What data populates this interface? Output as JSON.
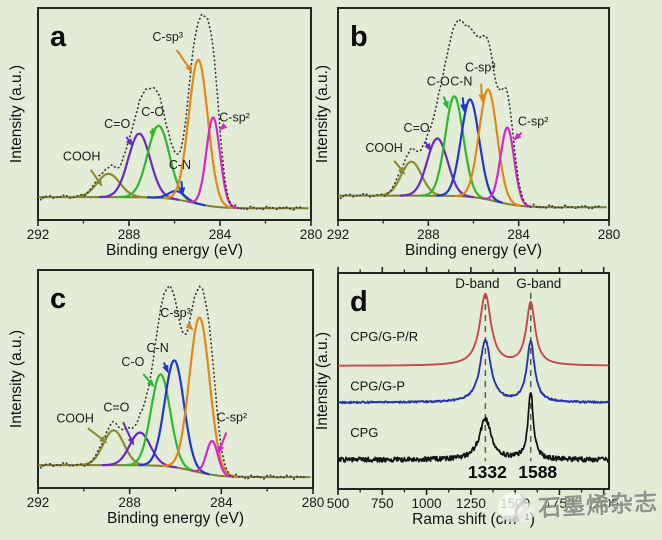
{
  "page": {
    "background": "#e3ecd7",
    "watermark": {
      "logo": "journal-logo",
      "text": "石墨烯杂志"
    }
  },
  "chart_data": [
    {
      "id": "a",
      "type": "area",
      "panel_label": "a",
      "xlabel": "Binding energy (eV)",
      "ylabel": "Intensity (a.u.)",
      "xlim": [
        292,
        280
      ],
      "x_ticks": [
        292,
        288,
        284,
        280
      ],
      "x_minor_ticks": [
        290,
        286,
        282
      ],
      "grid": false,
      "background_line": {
        "left_level": 0.108,
        "right_level": 0.055,
        "center": 285.2,
        "width": 0.55,
        "color": "#7d7d33"
      },
      "envelope": {
        "style": "dotted",
        "color": "#3c3c3c",
        "scale": 1.2,
        "noise": 0.013
      },
      "peaks": [
        {
          "slug": "cooh",
          "label": "COOH",
          "center": 288.9,
          "height": 0.11,
          "sigma": 0.5,
          "color": "#8b8b2f",
          "label_pos": [
            0.16,
            0.72
          ]
        },
        {
          "slug": "c-dbl-o",
          "label": "C=O",
          "center": 287.55,
          "height": 0.3,
          "sigma": 0.48,
          "color": "#6a2abf",
          "label_pos": [
            0.29,
            0.565
          ]
        },
        {
          "slug": "c-o",
          "label": "C-O",
          "center": 286.7,
          "height": 0.34,
          "sigma": 0.48,
          "color": "#2eb82e",
          "label_pos": [
            0.42,
            0.51
          ]
        },
        {
          "slug": "c-n",
          "label": "C-N",
          "center": 285.9,
          "height": 0.04,
          "sigma": 0.35,
          "color": "#2038c8",
          "label_pos": [
            0.52,
            0.76
          ]
        },
        {
          "slug": "c-sp3",
          "label": "C-sp³",
          "center": 284.95,
          "height": 0.68,
          "sigma": 0.42,
          "color": "#e0891a",
          "label_pos": [
            0.475,
            0.155
          ]
        },
        {
          "slug": "c-sp2",
          "label": "C-sp²",
          "center": 284.3,
          "height": 0.42,
          "sigma": 0.3,
          "color": "#d428c8",
          "label_pos": [
            0.72,
            0.535
          ]
        }
      ]
    },
    {
      "id": "b",
      "type": "area",
      "panel_label": "b",
      "xlabel": "Binding energy (eV)",
      "ylabel": "Intensity (a.u.)",
      "xlim": [
        292,
        280
      ],
      "x_ticks": [
        292,
        288,
        284,
        280
      ],
      "x_minor_ticks": [
        290,
        286,
        282
      ],
      "grid": false,
      "background_line": {
        "left_level": 0.115,
        "right_level": 0.06,
        "center": 285.0,
        "width": 0.55,
        "color": "#7d7d33"
      },
      "envelope": {
        "style": "dotted",
        "color": "#3c3c3c",
        "scale": 1.26,
        "noise": 0.013
      },
      "peaks": [
        {
          "slug": "cooh",
          "label": "COOH",
          "center": 288.75,
          "height": 0.16,
          "sigma": 0.45,
          "color": "#8b8b2f",
          "label_pos": [
            0.17,
            0.68
          ]
        },
        {
          "slug": "c-dbl-o",
          "label": "C=O",
          "center": 287.6,
          "height": 0.27,
          "sigma": 0.45,
          "color": "#6a2abf",
          "label_pos": [
            0.29,
            0.585
          ]
        },
        {
          "slug": "c-o",
          "label": "C-O",
          "center": 286.85,
          "height": 0.47,
          "sigma": 0.4,
          "color": "#2eb82e",
          "label_pos": [
            0.37,
            0.365
          ]
        },
        {
          "slug": "c-n",
          "label": "C-N",
          "center": 286.15,
          "height": 0.46,
          "sigma": 0.4,
          "color": "#2038c8",
          "label_pos": [
            0.455,
            0.365
          ]
        },
        {
          "slug": "c-sp3",
          "label": "C-sp³",
          "center": 285.35,
          "height": 0.52,
          "sigma": 0.4,
          "color": "#e0891a",
          "label_pos": [
            0.525,
            0.3
          ]
        },
        {
          "slug": "c-sp2",
          "label": "C-sp²",
          "center": 284.5,
          "height": 0.36,
          "sigma": 0.3,
          "color": "#d428c8",
          "label_pos": [
            0.72,
            0.555
          ]
        }
      ]
    },
    {
      "id": "c",
      "type": "area",
      "panel_label": "c",
      "xlabel": "Binding energy (eV)",
      "ylabel": "Intensity (a.u.)",
      "xlim": [
        292,
        280
      ],
      "x_ticks": [
        292,
        288,
        284,
        280
      ],
      "x_minor_ticks": [
        290,
        286,
        282
      ],
      "grid": false,
      "background_line": {
        "left_level": 0.105,
        "right_level": 0.05,
        "center": 285.2,
        "width": 0.55,
        "color": "#7d7d33"
      },
      "envelope": {
        "style": "dotted",
        "color": "#3c3c3c",
        "scale": 1.16,
        "noise": 0.013
      },
      "peaks": [
        {
          "slug": "cooh",
          "label": "COOH",
          "center": 288.7,
          "height": 0.16,
          "sigma": 0.45,
          "color": "#8b8b2f",
          "label_pos": [
            0.135,
            0.7
          ]
        },
        {
          "slug": "c-dbl-o",
          "label": "C=O",
          "center": 287.55,
          "height": 0.15,
          "sigma": 0.45,
          "color": "#6a2abf",
          "label_pos": [
            0.285,
            0.65
          ]
        },
        {
          "slug": "c-o",
          "label": "C-O",
          "center": 286.65,
          "height": 0.42,
          "sigma": 0.42,
          "color": "#2eb82e",
          "label_pos": [
            0.345,
            0.44
          ]
        },
        {
          "slug": "c-n",
          "label": "C-N",
          "center": 286.05,
          "height": 0.49,
          "sigma": 0.42,
          "color": "#2038c8",
          "label_pos": [
            0.435,
            0.375
          ]
        },
        {
          "slug": "c-sp3",
          "label": "C-sp³",
          "center": 284.95,
          "height": 0.71,
          "sigma": 0.44,
          "color": "#e0891a",
          "label_pos": [
            0.5,
            0.215
          ]
        },
        {
          "slug": "c-sp2",
          "label": "C-sp²",
          "center": 284.4,
          "height": 0.155,
          "sigma": 0.25,
          "color": "#d428c8",
          "label_pos": [
            0.705,
            0.695
          ]
        }
      ]
    },
    {
      "id": "d",
      "type": "line",
      "panel_label": "d",
      "xlabel": "Rama shift (cm⁻¹)",
      "ylabel": "Intensity (a.u.)",
      "xlim": [
        500,
        2030
      ],
      "x_ticks": [
        500,
        750,
        1000,
        1250,
        1500,
        1750,
        2000
      ],
      "x_minor_ticks": [
        625,
        875,
        1125,
        1375,
        1625,
        1875
      ],
      "grid": false,
      "bands": [
        {
          "slug": "d-band",
          "name": "D-band",
          "x": 1332,
          "value_label": "1332",
          "name_dx": -8,
          "value_dx": 2
        },
        {
          "slug": "g-band",
          "name": "G-band",
          "x": 1588,
          "value_label": "1588",
          "name_dx": 8,
          "value_dx": 7
        }
      ],
      "dash_color": "#566055",
      "series": [
        {
          "slug": "cpg-g-p-r",
          "name": "CPG/G-P/R",
          "color": "#c14b4b",
          "offset": 0.57,
          "d_height": 0.33,
          "g_height": 0.29,
          "d_gamma": 38,
          "g_gamma": 30,
          "noise": 0.0,
          "label_pos": [
            0.045,
            0.315
          ]
        },
        {
          "slug": "cpg-g-p",
          "name": "CPG/G-P",
          "color": "#2a35a8",
          "offset": 0.4,
          "d_height": 0.29,
          "g_height": 0.28,
          "d_gamma": 36,
          "g_gamma": 26,
          "noise": 0.004,
          "label_pos": [
            0.045,
            0.545
          ]
        },
        {
          "slug": "cpg",
          "name": "CPG",
          "color": "#121212",
          "offset": 0.135,
          "d_height": 0.19,
          "g_height": 0.31,
          "d_gamma": 40,
          "g_gamma": 18,
          "noise": 0.011,
          "label_pos": [
            0.045,
            0.76
          ]
        }
      ]
    }
  ]
}
